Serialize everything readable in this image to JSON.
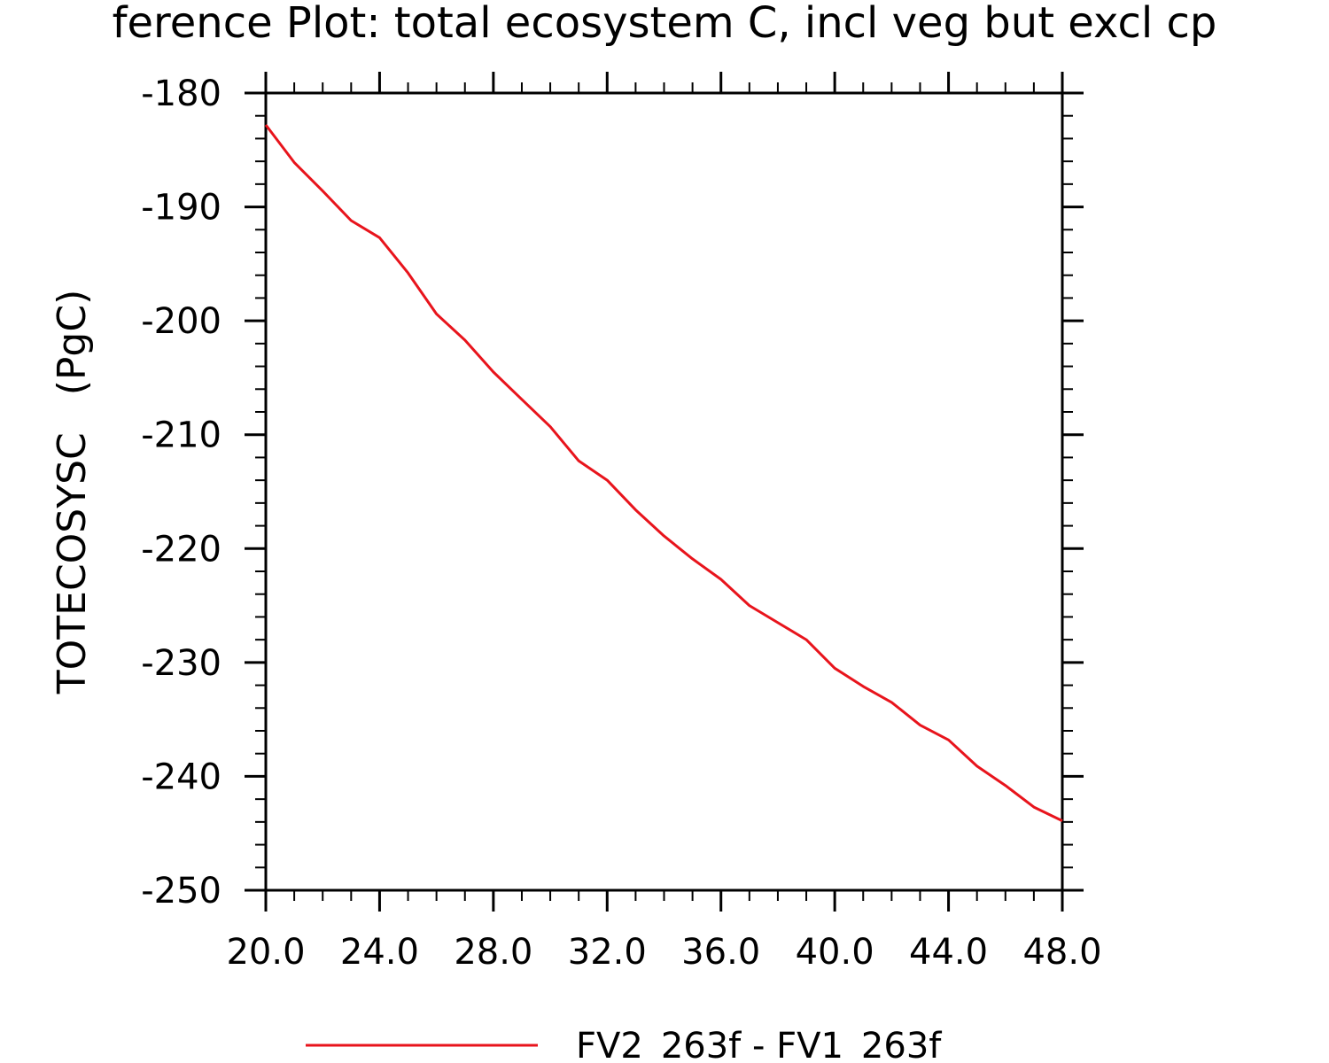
{
  "chart_data": {
    "type": "line",
    "title": "ference Plot: total ecosystem C, incl veg but excl cp",
    "xlabel": "",
    "ylabel": "TOTECOSYSC   (PgC)",
    "xlim": [
      20,
      48
    ],
    "ylim": [
      -250,
      -180
    ],
    "x_ticks": [
      "20.0",
      "24.0",
      "28.0",
      "32.0",
      "36.0",
      "40.0",
      "44.0",
      "48.0"
    ],
    "y_ticks": [
      "-180",
      "-190",
      "-200",
      "-210",
      "-220",
      "-230",
      "-240",
      "-250"
    ],
    "x_tick_values": [
      20,
      24,
      28,
      32,
      36,
      40,
      44,
      48
    ],
    "y_tick_values": [
      -180,
      -190,
      -200,
      -210,
      -220,
      -230,
      -240,
      -250
    ],
    "grid": false,
    "legend_position": "bottom-center",
    "series": [
      {
        "name": "FV2_263f - FV1_263f",
        "color": "#e8141c",
        "x": [
          20,
          21,
          22,
          23,
          24,
          25,
          26,
          27,
          28,
          29,
          30,
          31,
          32,
          33,
          34,
          35,
          36,
          37,
          38,
          39,
          40,
          41,
          42,
          43,
          44,
          45,
          46,
          47,
          48
        ],
        "y": [
          -182.8,
          -186.1,
          -188.6,
          -191.2,
          -192.7,
          -195.8,
          -199.4,
          -201.7,
          -204.5,
          -206.9,
          -209.3,
          -212.3,
          -214.0,
          -216.6,
          -218.9,
          -220.9,
          -222.7,
          -225.0,
          -226.5,
          -228.0,
          -230.5,
          -232.1,
          -233.5,
          -235.5,
          -236.8,
          -239.1,
          -240.8,
          -242.7,
          -243.9
        ]
      }
    ]
  }
}
